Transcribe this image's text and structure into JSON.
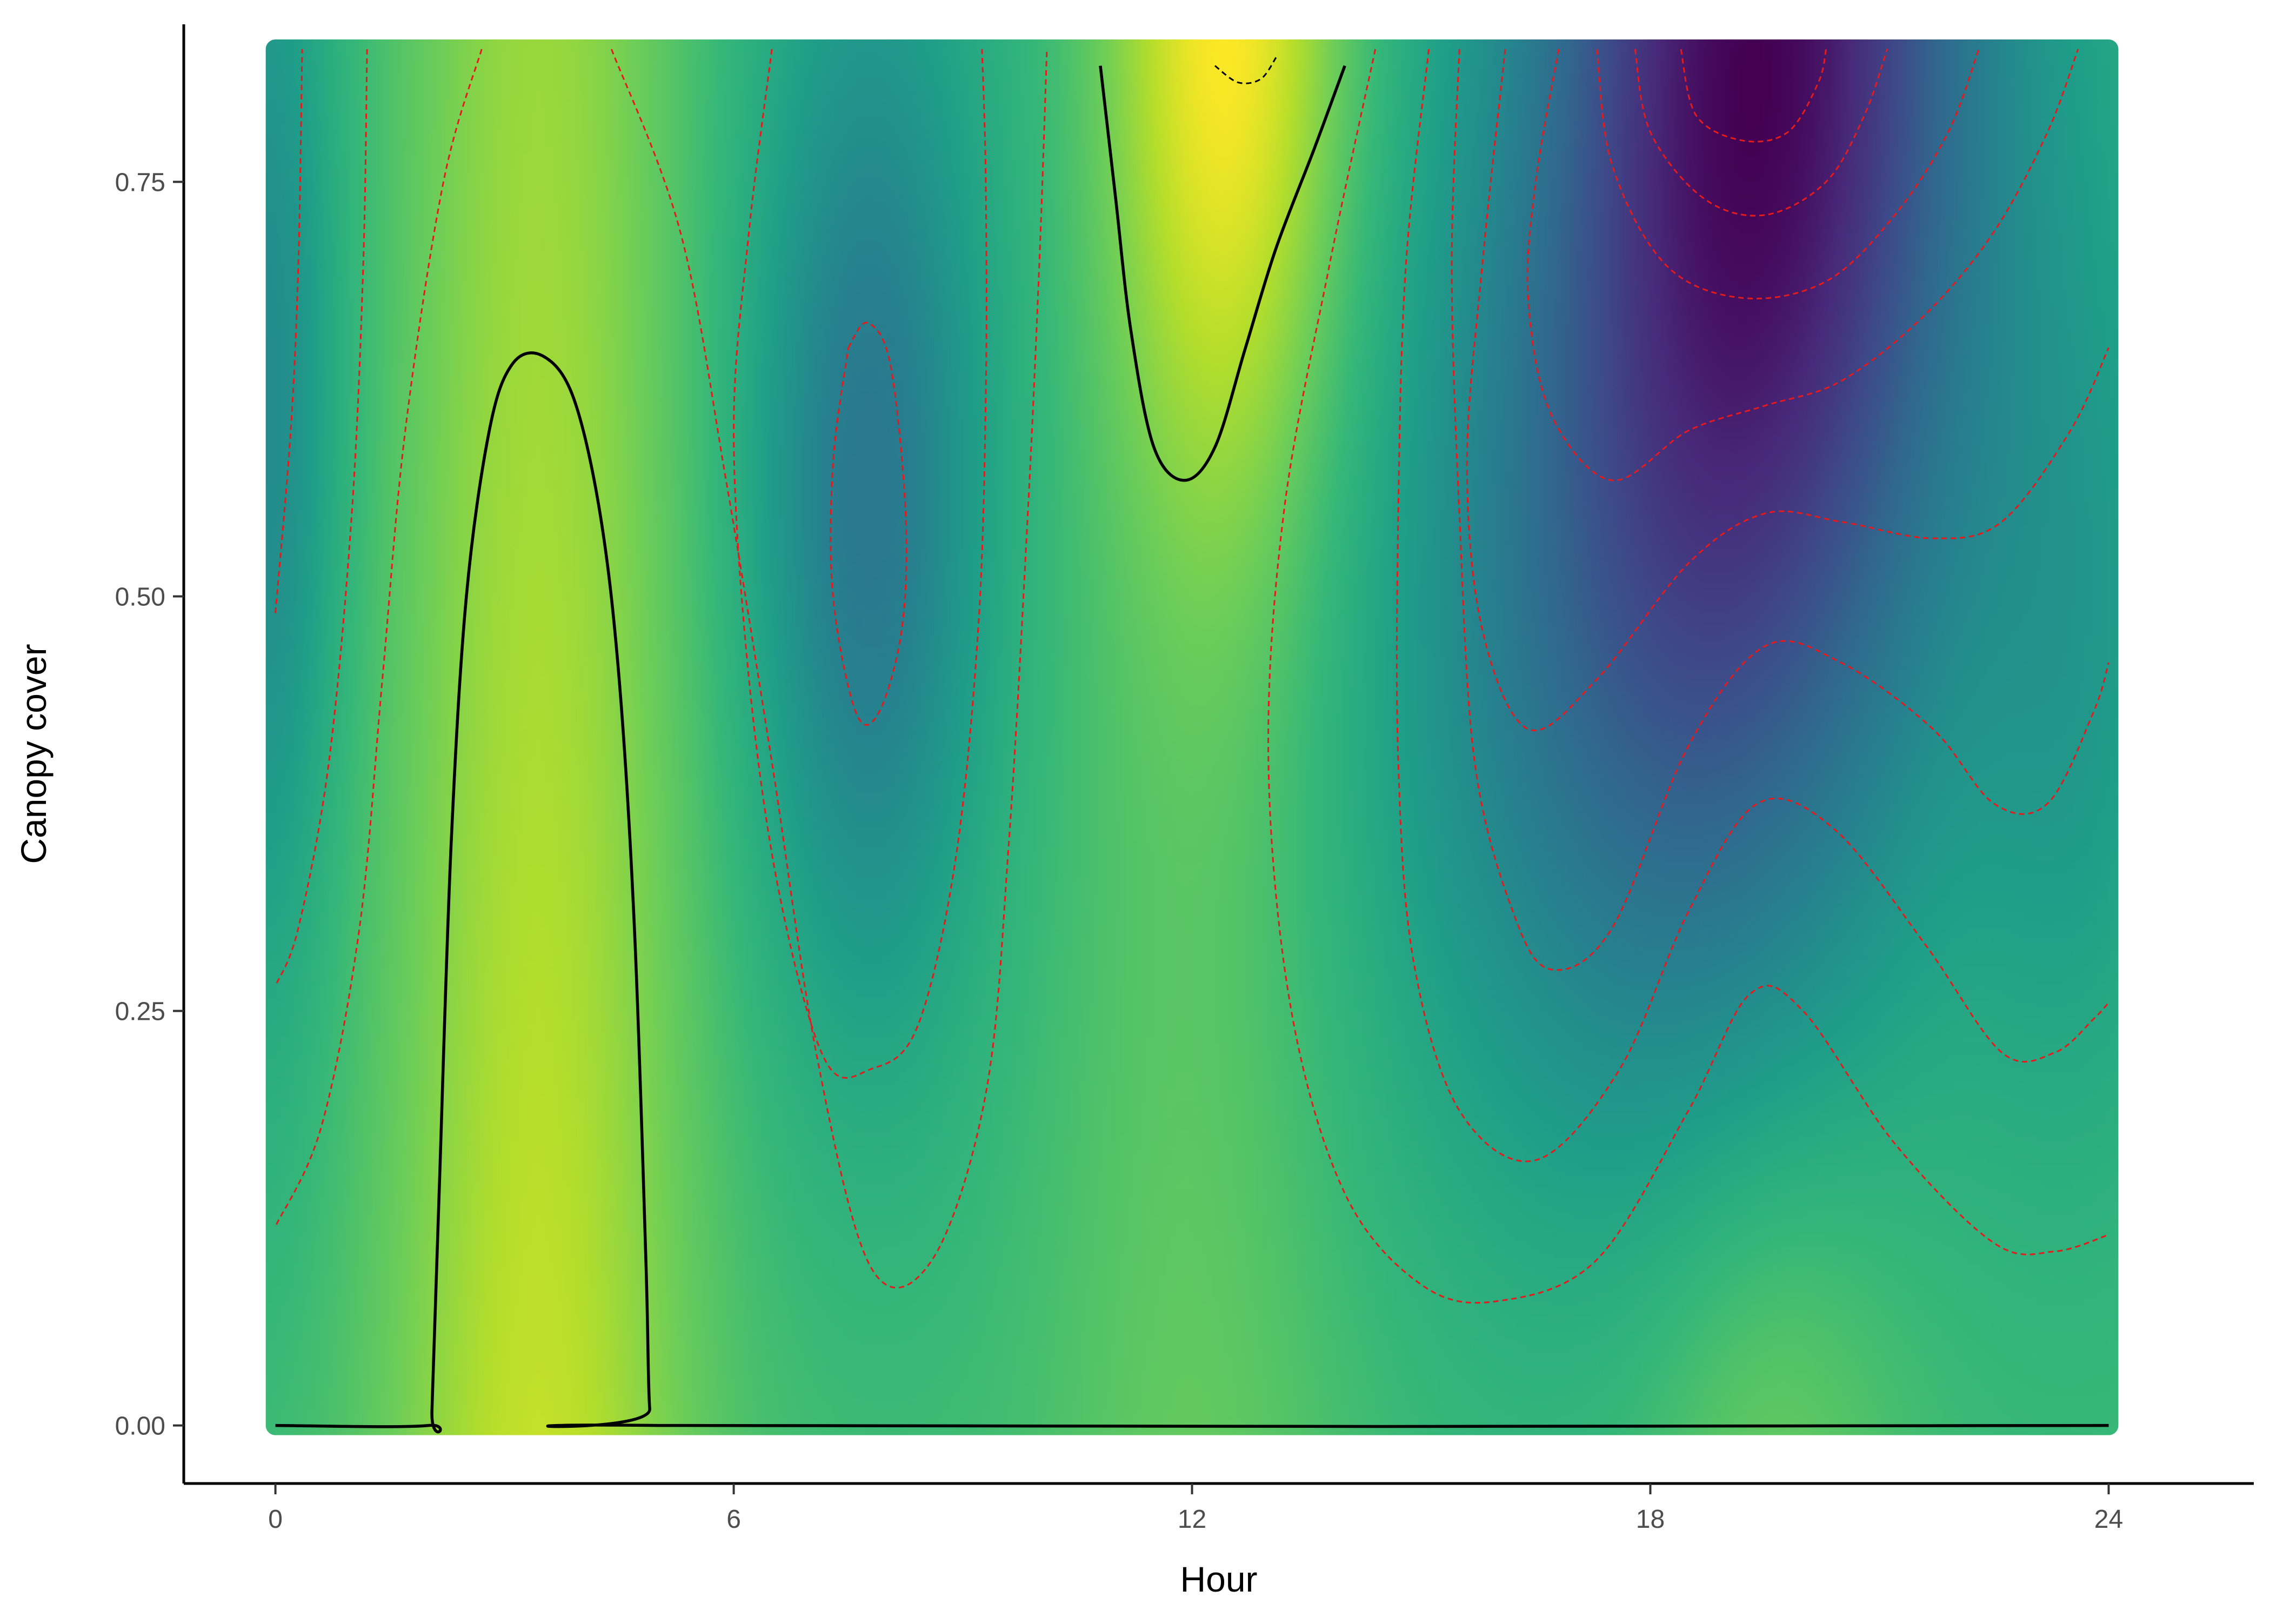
{
  "chart_data": {
    "type": "heatmap",
    "title": "",
    "xlabel": "Hour",
    "ylabel": "Canopy cover",
    "xlim": [
      -1.2,
      25.9
    ],
    "ylim": [
      -0.035,
      0.845
    ],
    "x_ticks": [
      0,
      6,
      12,
      18,
      24
    ],
    "x_tick_labels": [
      "0",
      "6",
      "12",
      "18",
      "24"
    ],
    "y_ticks": [
      0,
      0.25,
      0.5,
      0.75
    ],
    "y_tick_labels": [
      "0.00",
      "0.25",
      "0.50",
      "0.75"
    ],
    "grid": false,
    "legend": "none",
    "colormap": "viridis",
    "colormap_stops": [
      "#440154",
      "#482878",
      "#3e4989",
      "#31688e",
      "#26828e",
      "#1f9e89",
      "#35b779",
      "#6ece58",
      "#b5de2b",
      "#fde725"
    ],
    "surface_domain": {
      "x": [
        0,
        24
      ],
      "y": [
        0,
        0.83
      ]
    },
    "surface_peaks": [
      {
        "x": 3.5,
        "y": 0.35,
        "note": "high (yellow)"
      },
      {
        "x": 12.5,
        "y": 0.82,
        "note": "highest (yellow)"
      },
      {
        "x": 7.8,
        "y": 0.55,
        "note": "low (teal)"
      },
      {
        "x": 19.3,
        "y": 0.82,
        "note": "lowest (purple)"
      }
    ],
    "contour_colors": {
      "solid": "#000000",
      "dashed_red": "#e41a1c",
      "dashed_black": "#000000"
    },
    "series": [
      {
        "style": "solid",
        "points": [
          [
            0.0,
            0.0
          ],
          [
            2.0,
            0.0
          ],
          [
            2.05,
            0.01
          ],
          [
            2.15,
            0.15
          ],
          [
            2.3,
            0.35
          ],
          [
            2.5,
            0.5
          ],
          [
            2.8,
            0.6
          ],
          [
            3.1,
            0.64
          ],
          [
            3.5,
            0.645
          ],
          [
            3.9,
            0.62
          ],
          [
            4.25,
            0.55
          ],
          [
            4.5,
            0.45
          ],
          [
            4.7,
            0.3
          ],
          [
            4.85,
            0.1
          ],
          [
            4.9,
            0.01
          ],
          [
            5.0,
            0.0
          ],
          [
            24.0,
            0.0
          ]
        ]
      },
      {
        "style": "solid",
        "points": [
          [
            10.8,
            0.82
          ],
          [
            11.0,
            0.74
          ],
          [
            11.2,
            0.66
          ],
          [
            11.5,
            0.59
          ],
          [
            11.9,
            0.57
          ],
          [
            12.3,
            0.59
          ],
          [
            12.7,
            0.65
          ],
          [
            13.1,
            0.71
          ],
          [
            13.6,
            0.77
          ],
          [
            14.0,
            0.82
          ]
        ]
      },
      {
        "style": "dashed_black",
        "points": [
          [
            12.3,
            0.82
          ],
          [
            12.6,
            0.81
          ],
          [
            12.9,
            0.812
          ],
          [
            13.1,
            0.825
          ]
        ]
      },
      {
        "style": "dashed_red",
        "points": [
          [
            0.0,
            0.49
          ],
          [
            0.2,
            0.6
          ],
          [
            0.3,
            0.7
          ],
          [
            0.35,
            0.83
          ]
        ]
      },
      {
        "style": "dashed_red",
        "points": [
          [
            1.2,
            0.83
          ],
          [
            1.15,
            0.7
          ],
          [
            1.0,
            0.55
          ],
          [
            0.7,
            0.4
          ],
          [
            0.3,
            0.3
          ],
          [
            0.0,
            0.265
          ]
        ]
      },
      {
        "style": "dashed_red",
        "points": [
          [
            2.7,
            0.83
          ],
          [
            2.2,
            0.75
          ],
          [
            1.7,
            0.6
          ],
          [
            1.4,
            0.45
          ],
          [
            1.1,
            0.3
          ],
          [
            0.6,
            0.18
          ],
          [
            0.0,
            0.12
          ]
        ]
      },
      {
        "style": "dashed_red",
        "points": [
          [
            4.4,
            0.83
          ],
          [
            5.3,
            0.72
          ],
          [
            5.9,
            0.57
          ],
          [
            6.5,
            0.4
          ],
          [
            7.1,
            0.22
          ],
          [
            7.8,
            0.095
          ],
          [
            8.6,
            0.1
          ],
          [
            9.3,
            0.2
          ],
          [
            9.6,
            0.35
          ],
          [
            9.85,
            0.55
          ],
          [
            10.0,
            0.7
          ],
          [
            10.1,
            0.83
          ]
        ]
      },
      {
        "style": "dashed_red",
        "points": [
          [
            6.5,
            0.83
          ],
          [
            6.2,
            0.72
          ],
          [
            6.0,
            0.6
          ],
          [
            6.2,
            0.45
          ],
          [
            6.6,
            0.32
          ],
          [
            7.2,
            0.22
          ],
          [
            7.8,
            0.215
          ],
          [
            8.4,
            0.24
          ],
          [
            8.9,
            0.34
          ],
          [
            9.2,
            0.48
          ],
          [
            9.3,
            0.62
          ],
          [
            9.3,
            0.75
          ],
          [
            9.25,
            0.83
          ]
        ]
      },
      {
        "style": "dashed_red",
        "points": [
          [
            7.5,
            0.65
          ],
          [
            7.75,
            0.665
          ],
          [
            8.05,
            0.64
          ],
          [
            8.25,
            0.55
          ],
          [
            8.2,
            0.48
          ],
          [
            7.9,
            0.43
          ],
          [
            7.6,
            0.43
          ],
          [
            7.3,
            0.5
          ],
          [
            7.3,
            0.58
          ],
          [
            7.5,
            0.65
          ]
        ]
      },
      {
        "style": "dashed_red",
        "points": [
          [
            14.4,
            0.83
          ],
          [
            13.8,
            0.7
          ],
          [
            13.2,
            0.55
          ],
          [
            13.0,
            0.4
          ],
          [
            13.3,
            0.25
          ],
          [
            14.0,
            0.14
          ],
          [
            15.0,
            0.085
          ],
          [
            16.0,
            0.075
          ],
          [
            17.3,
            0.1
          ],
          [
            18.5,
            0.19
          ],
          [
            19.3,
            0.26
          ],
          [
            20.0,
            0.25
          ],
          [
            21.2,
            0.17
          ],
          [
            22.5,
            0.11
          ],
          [
            23.3,
            0.105
          ],
          [
            24.0,
            0.115
          ]
        ]
      },
      {
        "style": "dashed_red",
        "points": [
          [
            15.1,
            0.83
          ],
          [
            14.8,
            0.7
          ],
          [
            14.7,
            0.55
          ],
          [
            14.7,
            0.4
          ],
          [
            14.9,
            0.28
          ],
          [
            15.5,
            0.19
          ],
          [
            16.5,
            0.16
          ],
          [
            17.6,
            0.215
          ],
          [
            18.5,
            0.31
          ],
          [
            19.4,
            0.375
          ],
          [
            20.4,
            0.36
          ],
          [
            21.6,
            0.29
          ],
          [
            22.6,
            0.225
          ],
          [
            23.3,
            0.225
          ],
          [
            23.8,
            0.245
          ],
          [
            24.0,
            0.255
          ]
        ]
      },
      {
        "style": "dashed_red",
        "points": [
          [
            15.5,
            0.83
          ],
          [
            15.4,
            0.7
          ],
          [
            15.5,
            0.55
          ],
          [
            15.7,
            0.4
          ],
          [
            16.2,
            0.31
          ],
          [
            16.7,
            0.275
          ],
          [
            17.5,
            0.3
          ],
          [
            18.5,
            0.41
          ],
          [
            19.5,
            0.47
          ],
          [
            20.5,
            0.46
          ],
          [
            21.7,
            0.42
          ],
          [
            22.5,
            0.375
          ],
          [
            23.2,
            0.375
          ],
          [
            23.8,
            0.43
          ],
          [
            24.0,
            0.46
          ]
        ]
      },
      {
        "style": "dashed_red",
        "points": [
          [
            16.1,
            0.83
          ],
          [
            15.8,
            0.7
          ],
          [
            15.6,
            0.58
          ],
          [
            15.8,
            0.48
          ],
          [
            16.4,
            0.42
          ],
          [
            17.3,
            0.45
          ],
          [
            18.5,
            0.52
          ],
          [
            19.5,
            0.55
          ],
          [
            20.5,
            0.545
          ],
          [
            21.7,
            0.535
          ],
          [
            22.6,
            0.545
          ],
          [
            23.5,
            0.6
          ],
          [
            24.0,
            0.65
          ]
        ]
      },
      {
        "style": "dashed_red",
        "points": [
          [
            16.8,
            0.83
          ],
          [
            16.5,
            0.75
          ],
          [
            16.4,
            0.68
          ],
          [
            16.7,
            0.61
          ],
          [
            17.5,
            0.57
          ],
          [
            18.5,
            0.6
          ],
          [
            19.5,
            0.615
          ],
          [
            20.5,
            0.63
          ],
          [
            21.6,
            0.67
          ],
          [
            22.5,
            0.72
          ],
          [
            23.2,
            0.78
          ],
          [
            23.6,
            0.83
          ]
        ]
      },
      {
        "style": "dashed_red",
        "points": [
          [
            17.3,
            0.83
          ],
          [
            17.5,
            0.76
          ],
          [
            18.2,
            0.7
          ],
          [
            19.2,
            0.68
          ],
          [
            20.3,
            0.69
          ],
          [
            21.2,
            0.73
          ],
          [
            21.9,
            0.78
          ],
          [
            22.3,
            0.83
          ]
        ]
      },
      {
        "style": "dashed_red",
        "points": [
          [
            17.8,
            0.83
          ],
          [
            18.0,
            0.78
          ],
          [
            18.7,
            0.74
          ],
          [
            19.5,
            0.73
          ],
          [
            20.3,
            0.75
          ],
          [
            20.8,
            0.79
          ],
          [
            21.1,
            0.83
          ]
        ]
      },
      {
        "style": "dashed_red",
        "points": [
          [
            18.4,
            0.83
          ],
          [
            18.6,
            0.79
          ],
          [
            19.2,
            0.775
          ],
          [
            19.8,
            0.78
          ],
          [
            20.2,
            0.81
          ],
          [
            20.3,
            0.83
          ]
        ]
      }
    ]
  }
}
